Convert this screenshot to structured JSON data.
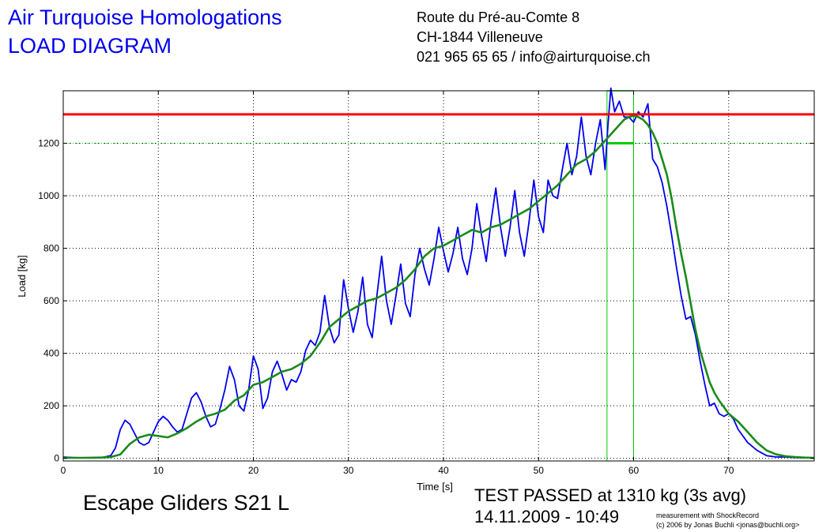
{
  "header": {
    "title_line1": "Air Turquoise Homologations",
    "title_line2": "LOAD DIAGRAM",
    "address_line1": "Route du Pré-au-Comte 8",
    "address_line2": "CH-1844 Villeneuve",
    "address_line3": "021 965 65 65 / info@airturquoise.ch"
  },
  "footer": {
    "glider_name": "Escape Gliders S21 L",
    "result_line1": "TEST PASSED at 1310 kg (3s avg)",
    "result_line2": "14.11.2009 - 10:49",
    "credit_line1": "measurement with ShockRecord",
    "credit_line2": "(c) 2006 by Jonas Buchli <jonas@buchli.org>"
  },
  "colors": {
    "title": "#0000ee",
    "raw_series": "#0000ee",
    "avg_series": "#1a8a1a",
    "threshold": "#ff0000",
    "window": "#00cc00",
    "grid": "#000000"
  },
  "chart_data": {
    "type": "line",
    "title": "",
    "xlabel": "Time [s]",
    "ylabel": "Load [kg]",
    "xlim": [
      0,
      79
    ],
    "ylim": [
      -10,
      1400
    ],
    "xticks": [
      0,
      10,
      20,
      30,
      40,
      50,
      60,
      70
    ],
    "yticks": [
      0,
      200,
      400,
      600,
      800,
      1000,
      1200
    ],
    "grid": true,
    "threshold": 1310,
    "window": {
      "x_start": 57.2,
      "x_end": 60.0,
      "y_top": 1400,
      "y_level": 1200
    },
    "series": [
      {
        "key": "raw",
        "x": [
          0,
          1,
          2,
          3,
          4,
          5,
          5.5,
          6,
          6.5,
          7,
          7.5,
          8,
          8.5,
          9,
          9.5,
          10,
          10.5,
          11,
          11.5,
          12,
          12.5,
          13,
          13.5,
          14,
          14.5,
          15,
          15.5,
          16,
          16.5,
          17,
          17.5,
          18,
          18.5,
          19,
          19.5,
          20,
          20.5,
          21,
          21.5,
          22,
          22.5,
          23,
          23.5,
          24,
          24.5,
          25,
          25.5,
          26,
          26.5,
          27,
          27.5,
          28,
          28.5,
          29,
          29.5,
          30,
          30.5,
          31,
          31.5,
          32,
          32.5,
          33,
          33.5,
          34,
          34.5,
          35,
          35.5,
          36,
          36.5,
          37,
          37.5,
          38,
          38.5,
          39,
          39.5,
          40,
          40.5,
          41,
          41.5,
          42,
          42.5,
          43,
          43.5,
          44,
          44.5,
          45,
          45.5,
          46,
          46.5,
          47,
          47.5,
          48,
          48.5,
          49,
          49.5,
          50,
          50.5,
          51,
          51.5,
          52,
          52.5,
          53,
          53.5,
          54,
          54.5,
          55,
          55.5,
          56,
          56.5,
          57,
          57.3,
          57.6,
          58,
          58.5,
          59,
          59.5,
          60,
          60.5,
          61,
          61.5,
          62,
          62.5,
          63,
          63.5,
          64,
          64.5,
          65,
          65.5,
          66,
          66.5,
          67,
          67.5,
          68,
          68.5,
          69,
          69.5,
          70,
          70.5,
          71,
          72,
          73,
          74,
          75,
          76,
          77,
          78,
          79
        ],
        "values": [
          5,
          3,
          2,
          2,
          3,
          10,
          40,
          110,
          145,
          130,
          95,
          60,
          50,
          60,
          100,
          140,
          160,
          145,
          120,
          100,
          110,
          170,
          230,
          250,
          215,
          160,
          120,
          130,
          190,
          260,
          350,
          300,
          200,
          180,
          260,
          390,
          340,
          190,
          230,
          330,
          370,
          320,
          260,
          300,
          290,
          330,
          410,
          450,
          430,
          480,
          620,
          500,
          440,
          470,
          680,
          570,
          480,
          560,
          690,
          510,
          460,
          620,
          770,
          600,
          510,
          620,
          740,
          590,
          540,
          700,
          800,
          720,
          660,
          760,
          880,
          790,
          710,
          780,
          880,
          760,
          700,
          800,
          970,
          850,
          750,
          900,
          1030,
          880,
          770,
          880,
          1020,
          860,
          770,
          900,
          1060,
          920,
          860,
          1060,
          1000,
          990,
          1100,
          1200,
          1080,
          1150,
          1300,
          1150,
          1080,
          1200,
          1290,
          1100,
          1270,
          1410,
          1320,
          1360,
          1300,
          1300,
          1280,
          1320,
          1300,
          1350,
          1140,
          1110,
          1050,
          960,
          850,
          730,
          620,
          530,
          540,
          470,
          370,
          280,
          200,
          210,
          170,
          160,
          170,
          150,
          110,
          60,
          30,
          10,
          5,
          5,
          3,
          2,
          2
        ]
      },
      {
        "key": "avg",
        "x": [
          0,
          2,
          4,
          5,
          6,
          7,
          8,
          9,
          10,
          11,
          12,
          13,
          14,
          15,
          16,
          17,
          18,
          19,
          20,
          21,
          22,
          23,
          24,
          25,
          26,
          27,
          28,
          29,
          30,
          31,
          32,
          33,
          34,
          35,
          36,
          37,
          38,
          39,
          40,
          41,
          42,
          43,
          44,
          45,
          46,
          47,
          48,
          49,
          50,
          51,
          52,
          53,
          54,
          55,
          56,
          57,
          58,
          59,
          59.5,
          60,
          60.5,
          61,
          61.5,
          62,
          62.5,
          63,
          63.5,
          64,
          64.5,
          65,
          65.5,
          66,
          66.5,
          67,
          67.5,
          68,
          68.5,
          69,
          70,
          71,
          72,
          73,
          74,
          75,
          76,
          77,
          78,
          79
        ],
        "values": [
          2,
          2,
          3,
          5,
          15,
          55,
          80,
          90,
          85,
          80,
          95,
          115,
          140,
          160,
          170,
          185,
          220,
          240,
          280,
          290,
          310,
          330,
          340,
          360,
          390,
          440,
          500,
          530,
          560,
          580,
          600,
          610,
          630,
          650,
          680,
          720,
          770,
          800,
          810,
          830,
          850,
          870,
          860,
          880,
          890,
          910,
          930,
          950,
          980,
          1010,
          1040,
          1080,
          1120,
          1140,
          1170,
          1210,
          1250,
          1290,
          1300,
          1305,
          1300,
          1290,
          1270,
          1240,
          1200,
          1140,
          1080,
          990,
          880,
          780,
          690,
          590,
          490,
          410,
          350,
          290,
          250,
          220,
          170,
          140,
          100,
          60,
          30,
          15,
          8,
          5,
          3,
          2
        ]
      }
    ]
  }
}
